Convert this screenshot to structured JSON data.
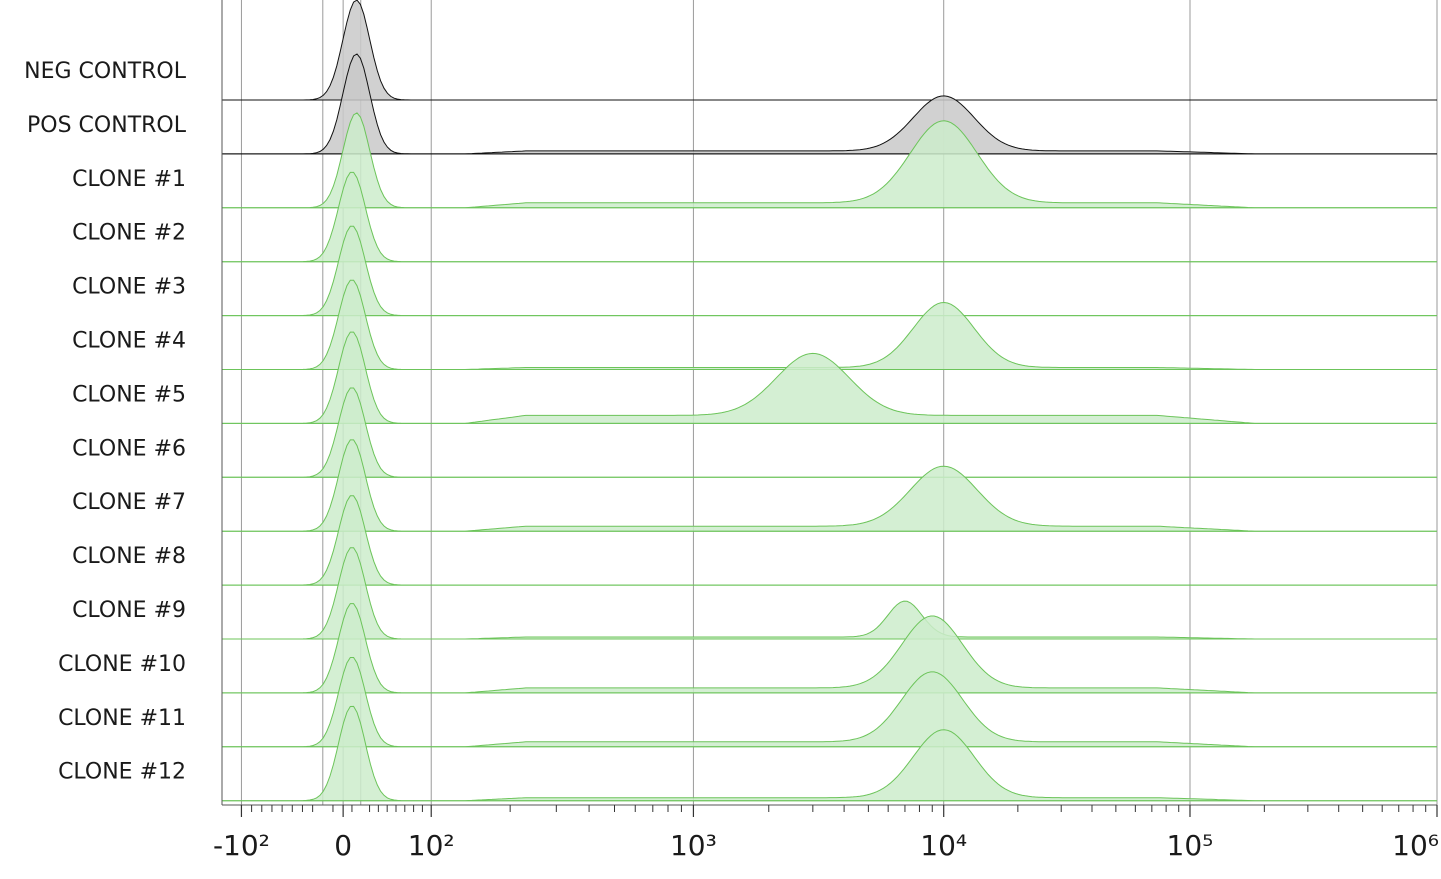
{
  "chart_data": {
    "type": "area",
    "title": "",
    "xlabel": "",
    "ylabel": "",
    "x_scale": "biexponential",
    "xlim": [
      -150,
      1000000
    ],
    "x_ticks": [
      {
        "value": -100,
        "label": "-10²"
      },
      {
        "value": 0,
        "label": "0"
      },
      {
        "value": 100,
        "label": "10²"
      },
      {
        "value": 1000,
        "label": "10³"
      },
      {
        "value": 10000,
        "label": "10⁴"
      },
      {
        "value": 100000,
        "label": "10⁵"
      },
      {
        "value": 1000000,
        "label": "10⁶"
      }
    ],
    "grid": true,
    "legend": "none",
    "colors": {
      "control_fill": "#c9c9c9",
      "control_line": "#111111",
      "clone_fill": "#cdeccb",
      "clone_line": "#6cc45a"
    },
    "series": [
      {
        "name": "NEG CONTROL",
        "group": "control",
        "peaks": [
          {
            "x": 15,
            "h": 1.0,
            "w": 0.22
          }
        ],
        "floor": 0.0
      },
      {
        "name": "POS CONTROL",
        "group": "control",
        "peaks": [
          {
            "x": 15,
            "h": 1.0,
            "w": 0.22
          },
          {
            "x": 10000,
            "h": 0.55,
            "w": 0.5
          }
        ],
        "floor": 0.03
      },
      {
        "name": "CLONE #1",
        "group": "clone",
        "peaks": [
          {
            "x": 15,
            "h": 0.95,
            "w": 0.22
          },
          {
            "x": 10000,
            "h": 0.82,
            "w": 0.55
          }
        ],
        "floor": 0.05
      },
      {
        "name": "CLONE #2",
        "group": "clone",
        "peaks": [
          {
            "x": 10,
            "h": 0.9,
            "w": 0.22
          }
        ],
        "floor": 0.0
      },
      {
        "name": "CLONE #3",
        "group": "clone",
        "peaks": [
          {
            "x": 10,
            "h": 0.9,
            "w": 0.22
          }
        ],
        "floor": 0.0
      },
      {
        "name": "CLONE #4",
        "group": "clone",
        "peaks": [
          {
            "x": 10,
            "h": 0.9,
            "w": 0.22
          },
          {
            "x": 10000,
            "h": 0.65,
            "w": 0.5
          }
        ],
        "floor": 0.02
      },
      {
        "name": "CLONE #5",
        "group": "clone",
        "peaks": [
          {
            "x": 10,
            "h": 0.92,
            "w": 0.22
          },
          {
            "x": 3000,
            "h": 0.62,
            "w": 0.6
          }
        ],
        "floor": 0.08
      },
      {
        "name": "CLONE #6",
        "group": "clone",
        "peaks": [
          {
            "x": 10,
            "h": 0.9,
            "w": 0.22
          }
        ],
        "floor": 0.0
      },
      {
        "name": "CLONE #7",
        "group": "clone",
        "peaks": [
          {
            "x": 10,
            "h": 0.92,
            "w": 0.22
          },
          {
            "x": 10000,
            "h": 0.6,
            "w": 0.55
          }
        ],
        "floor": 0.05
      },
      {
        "name": "CLONE #8",
        "group": "clone",
        "peaks": [
          {
            "x": 10,
            "h": 0.9,
            "w": 0.22
          }
        ],
        "floor": 0.0
      },
      {
        "name": "CLONE #9",
        "group": "clone",
        "peaks": [
          {
            "x": 10,
            "h": 0.92,
            "w": 0.22
          },
          {
            "x": 7000,
            "h": 0.36,
            "w": 0.28
          }
        ],
        "floor": 0.02
      },
      {
        "name": "CLONE #10",
        "group": "clone",
        "peaks": [
          {
            "x": 10,
            "h": 0.9,
            "w": 0.22
          },
          {
            "x": 9000,
            "h": 0.72,
            "w": 0.5
          }
        ],
        "floor": 0.05
      },
      {
        "name": "CLONE #11",
        "group": "clone",
        "peaks": [
          {
            "x": 10,
            "h": 0.9,
            "w": 0.22
          },
          {
            "x": 9000,
            "h": 0.7,
            "w": 0.5
          }
        ],
        "floor": 0.05
      },
      {
        "name": "CLONE #12",
        "group": "clone",
        "peaks": [
          {
            "x": 10,
            "h": 0.95,
            "w": 0.22
          },
          {
            "x": 10000,
            "h": 0.68,
            "w": 0.5
          }
        ],
        "floor": 0.03
      }
    ]
  }
}
